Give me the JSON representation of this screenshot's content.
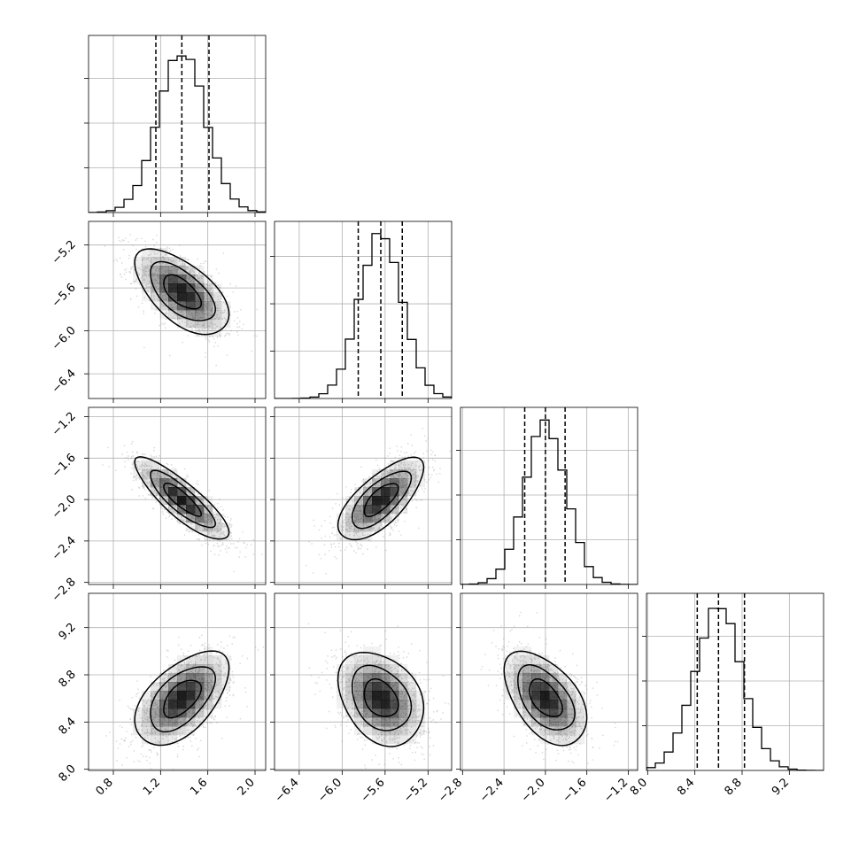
{
  "chart_data": {
    "type": "corner",
    "parameters": [
      {
        "range": [
          0.59,
          2.09
        ],
        "ticks": [
          0.8,
          1.2,
          1.6,
          2.0
        ],
        "tick_labels": [
          "0.8",
          "1.2",
          "1.6",
          "2.0"
        ],
        "mean": 1.38,
        "sd": 0.2,
        "quantiles": [
          1.16,
          1.38,
          1.61
        ]
      },
      {
        "range": [
          -6.63,
          -4.98
        ],
        "ticks": [
          -6.4,
          -6.0,
          -5.6,
          -5.2
        ],
        "tick_labels": [
          "−6.4",
          "−6.0",
          "−5.6",
          "−5.2"
        ],
        "mean": -5.64,
        "sd": 0.2,
        "quantiles": [
          -5.85,
          -5.64,
          -5.44
        ]
      },
      {
        "range": [
          -2.82,
          -1.11
        ],
        "ticks": [
          -2.8,
          -2.4,
          -2.0,
          -1.6,
          -1.2
        ],
        "tick_labels": [
          "−2.8",
          "−2.4",
          "−2.0",
          "−1.6",
          "−1.2"
        ],
        "mean": -2.0,
        "sd": 0.2,
        "quantiles": [
          -2.2,
          -2.0,
          -1.81
        ]
      },
      {
        "range": [
          7.99,
          9.49
        ],
        "ticks": [
          8.0,
          8.4,
          8.8,
          9.2
        ],
        "tick_labels": [
          "8.0",
          "8.4",
          "8.8",
          "9.2"
        ],
        "mean": 8.6,
        "sd": 0.2,
        "quantiles": [
          8.42,
          8.6,
          8.82
        ]
      }
    ],
    "correlations": [
      [
        1,
        -0.6,
        -0.85,
        0.55
      ],
      [
        -0.6,
        1,
        0.7,
        -0.3
      ],
      [
        -0.85,
        0.7,
        1,
        -0.5
      ],
      [
        0.55,
        -0.3,
        -0.5,
        1
      ]
    ],
    "histogram_max_fraction": [
      0.09,
      0.085,
      0.09,
      0.09
    ],
    "density_levels": [
      0.86,
      0.61,
      0.27
    ],
    "grid": true,
    "colors": {
      "frame": "#000000",
      "grid": "#b0b0b0",
      "density": "#000000",
      "scatter": "#8c8c8c"
    }
  }
}
